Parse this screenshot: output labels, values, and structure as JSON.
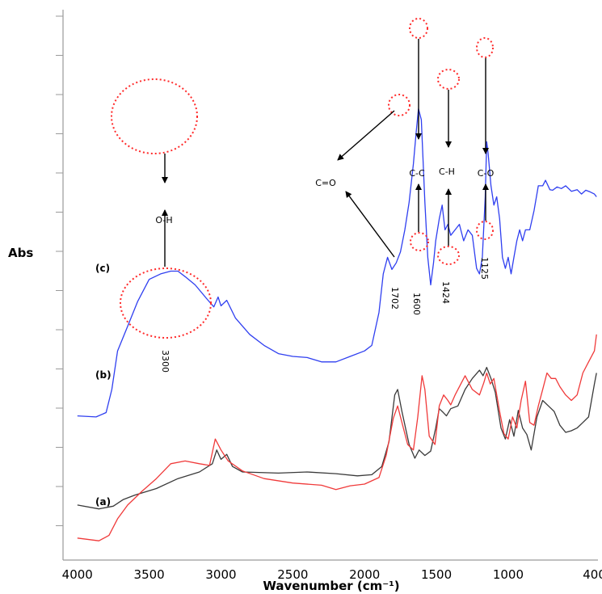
{
  "chart_data": {
    "type": "line",
    "xlabel": "Wavenumber (cm⁻¹)",
    "ylabel": "Abs",
    "xlim": [
      4100,
      375
    ],
    "ylim": [
      0,
      1
    ],
    "x_ticks": [
      4000,
      3500,
      3000,
      2500,
      2000,
      1500,
      1000,
      400
    ],
    "y_ticks_labeled": false,
    "grid": false,
    "series": [
      {
        "name": "(a)",
        "color": "#3a3a3a",
        "points": [
          [
            4000,
            0.1
          ],
          [
            3850,
            0.093
          ],
          [
            3750,
            0.098
          ],
          [
            3680,
            0.11
          ],
          [
            3600,
            0.118
          ],
          [
            3450,
            0.13
          ],
          [
            3300,
            0.148
          ],
          [
            3150,
            0.16
          ],
          [
            3060,
            0.175
          ],
          [
            3030,
            0.2
          ],
          [
            3000,
            0.183
          ],
          [
            2960,
            0.192
          ],
          [
            2920,
            0.17
          ],
          [
            2850,
            0.16
          ],
          [
            2600,
            0.158
          ],
          [
            2400,
            0.16
          ],
          [
            2200,
            0.157
          ],
          [
            2050,
            0.153
          ],
          [
            1950,
            0.155
          ],
          [
            1880,
            0.17
          ],
          [
            1830,
            0.215
          ],
          [
            1790,
            0.3
          ],
          [
            1770,
            0.31
          ],
          [
            1740,
            0.27
          ],
          [
            1690,
            0.21
          ],
          [
            1650,
            0.185
          ],
          [
            1620,
            0.2
          ],
          [
            1580,
            0.19
          ],
          [
            1540,
            0.198
          ],
          [
            1505,
            0.24
          ],
          [
            1480,
            0.275
          ],
          [
            1460,
            0.27
          ],
          [
            1430,
            0.262
          ],
          [
            1400,
            0.275
          ],
          [
            1350,
            0.28
          ],
          [
            1300,
            0.31
          ],
          [
            1250,
            0.33
          ],
          [
            1200,
            0.345
          ],
          [
            1175,
            0.335
          ],
          [
            1150,
            0.35
          ],
          [
            1120,
            0.33
          ],
          [
            1090,
            0.305
          ],
          [
            1050,
            0.24
          ],
          [
            1020,
            0.22
          ],
          [
            990,
            0.255
          ],
          [
            960,
            0.225
          ],
          [
            930,
            0.272
          ],
          [
            900,
            0.24
          ],
          [
            870,
            0.228
          ],
          [
            840,
            0.2
          ],
          [
            800,
            0.26
          ],
          [
            760,
            0.29
          ],
          [
            720,
            0.28
          ],
          [
            680,
            0.27
          ],
          [
            640,
            0.245
          ],
          [
            600,
            0.232
          ],
          [
            560,
            0.235
          ],
          [
            520,
            0.24
          ],
          [
            480,
            0.25
          ],
          [
            440,
            0.26
          ],
          [
            400,
            0.32
          ],
          [
            385,
            0.34
          ]
        ]
      },
      {
        "name": "(b)",
        "color": "#f03a3a",
        "points": [
          [
            4000,
            0.04
          ],
          [
            3850,
            0.035
          ],
          [
            3780,
            0.045
          ],
          [
            3720,
            0.075
          ],
          [
            3650,
            0.1
          ],
          [
            3550,
            0.125
          ],
          [
            3450,
            0.148
          ],
          [
            3350,
            0.175
          ],
          [
            3250,
            0.18
          ],
          [
            3150,
            0.175
          ],
          [
            3080,
            0.172
          ],
          [
            3040,
            0.22
          ],
          [
            3000,
            0.2
          ],
          [
            2950,
            0.18
          ],
          [
            2850,
            0.162
          ],
          [
            2700,
            0.148
          ],
          [
            2500,
            0.14
          ],
          [
            2300,
            0.136
          ],
          [
            2200,
            0.128
          ],
          [
            2100,
            0.135
          ],
          [
            2000,
            0.138
          ],
          [
            1900,
            0.15
          ],
          [
            1850,
            0.19
          ],
          [
            1800,
            0.258
          ],
          [
            1770,
            0.28
          ],
          [
            1740,
            0.25
          ],
          [
            1700,
            0.21
          ],
          [
            1660,
            0.2
          ],
          [
            1630,
            0.26
          ],
          [
            1600,
            0.335
          ],
          [
            1580,
            0.31
          ],
          [
            1550,
            0.225
          ],
          [
            1510,
            0.21
          ],
          [
            1480,
            0.28
          ],
          [
            1450,
            0.3
          ],
          [
            1420,
            0.29
          ],
          [
            1400,
            0.282
          ],
          [
            1370,
            0.3
          ],
          [
            1330,
            0.32
          ],
          [
            1300,
            0.335
          ],
          [
            1250,
            0.31
          ],
          [
            1200,
            0.3
          ],
          [
            1170,
            0.322
          ],
          [
            1150,
            0.34
          ],
          [
            1125,
            0.32
          ],
          [
            1100,
            0.33
          ],
          [
            1060,
            0.27
          ],
          [
            1030,
            0.23
          ],
          [
            1000,
            0.22
          ],
          [
            970,
            0.26
          ],
          [
            940,
            0.24
          ],
          [
            910,
            0.29
          ],
          [
            880,
            0.325
          ],
          [
            850,
            0.25
          ],
          [
            820,
            0.245
          ],
          [
            790,
            0.28
          ],
          [
            760,
            0.31
          ],
          [
            730,
            0.34
          ],
          [
            700,
            0.33
          ],
          [
            670,
            0.33
          ],
          [
            640,
            0.315
          ],
          [
            600,
            0.3
          ],
          [
            560,
            0.29
          ],
          [
            520,
            0.3
          ],
          [
            480,
            0.34
          ],
          [
            440,
            0.36
          ],
          [
            400,
            0.38
          ],
          [
            385,
            0.41
          ]
        ]
      },
      {
        "name": "(c)",
        "color": "#2f3ff0",
        "points": [
          [
            4000,
            0.262
          ],
          [
            3870,
            0.26
          ],
          [
            3800,
            0.268
          ],
          [
            3760,
            0.31
          ],
          [
            3720,
            0.38
          ],
          [
            3650,
            0.425
          ],
          [
            3580,
            0.47
          ],
          [
            3500,
            0.51
          ],
          [
            3420,
            0.52
          ],
          [
            3350,
            0.525
          ],
          [
            3300,
            0.525
          ],
          [
            3250,
            0.515
          ],
          [
            3180,
            0.5
          ],
          [
            3100,
            0.475
          ],
          [
            3050,
            0.46
          ],
          [
            3020,
            0.478
          ],
          [
            3000,
            0.462
          ],
          [
            2960,
            0.472
          ],
          [
            2900,
            0.44
          ],
          [
            2800,
            0.41
          ],
          [
            2700,
            0.39
          ],
          [
            2600,
            0.375
          ],
          [
            2500,
            0.37
          ],
          [
            2400,
            0.368
          ],
          [
            2300,
            0.36
          ],
          [
            2200,
            0.36
          ],
          [
            2100,
            0.37
          ],
          [
            2000,
            0.38
          ],
          [
            1950,
            0.39
          ],
          [
            1900,
            0.45
          ],
          [
            1870,
            0.52
          ],
          [
            1840,
            0.55
          ],
          [
            1810,
            0.528
          ],
          [
            1780,
            0.54
          ],
          [
            1750,
            0.56
          ],
          [
            1720,
            0.6
          ],
          [
            1690,
            0.65
          ],
          [
            1660,
            0.72
          ],
          [
            1640,
            0.78
          ],
          [
            1625,
            0.82
          ],
          [
            1605,
            0.8
          ],
          [
            1580,
            0.65
          ],
          [
            1560,
            0.55
          ],
          [
            1540,
            0.5
          ],
          [
            1520,
            0.54
          ],
          [
            1505,
            0.58
          ],
          [
            1480,
            0.62
          ],
          [
            1460,
            0.645
          ],
          [
            1440,
            0.6
          ],
          [
            1420,
            0.61
          ],
          [
            1400,
            0.59
          ],
          [
            1370,
            0.6
          ],
          [
            1340,
            0.61
          ],
          [
            1310,
            0.58
          ],
          [
            1280,
            0.6
          ],
          [
            1250,
            0.59
          ],
          [
            1220,
            0.53
          ],
          [
            1200,
            0.52
          ],
          [
            1180,
            0.55
          ],
          [
            1160,
            0.66
          ],
          [
            1150,
            0.76
          ],
          [
            1140,
            0.74
          ],
          [
            1120,
            0.68
          ],
          [
            1100,
            0.645
          ],
          [
            1080,
            0.66
          ],
          [
            1060,
            0.62
          ],
          [
            1040,
            0.55
          ],
          [
            1020,
            0.53
          ],
          [
            1000,
            0.55
          ],
          [
            980,
            0.52
          ],
          [
            960,
            0.55
          ],
          [
            940,
            0.58
          ],
          [
            920,
            0.6
          ],
          [
            900,
            0.58
          ],
          [
            880,
            0.6
          ],
          [
            850,
            0.6
          ],
          [
            820,
            0.635
          ],
          [
            790,
            0.68
          ],
          [
            760,
            0.68
          ],
          [
            740,
            0.69
          ],
          [
            710,
            0.673
          ],
          [
            690,
            0.672
          ],
          [
            660,
            0.678
          ],
          [
            630,
            0.675
          ],
          [
            600,
            0.68
          ],
          [
            560,
            0.67
          ],
          [
            520,
            0.673
          ],
          [
            490,
            0.665
          ],
          [
            460,
            0.672
          ],
          [
            430,
            0.669
          ],
          [
            400,
            0.665
          ],
          [
            385,
            0.66
          ]
        ]
      }
    ],
    "series_labels": [
      "(a)",
      "(b)",
      "(c)"
    ],
    "annotations": {
      "peak_labels": [
        "3300",
        "1702",
        "1600",
        "1424",
        "1125"
      ],
      "group_labels": [
        "O-H",
        "C=O",
        "C-C",
        "C-H",
        "C-O"
      ]
    }
  }
}
